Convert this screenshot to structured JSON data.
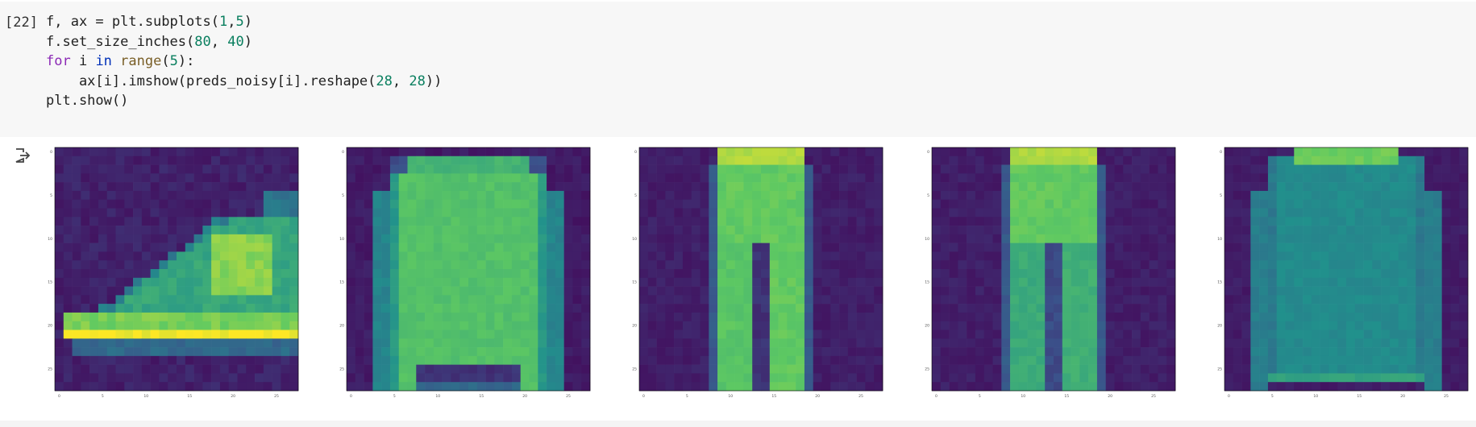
{
  "cell": {
    "execution_count": "[22]",
    "code_lines": [
      [
        {
          "t": "f, ax = plt.subplots("
        },
        {
          "t": "1",
          "c": "num"
        },
        {
          "t": ","
        },
        {
          "t": "5",
          "c": "num"
        },
        {
          "t": ")"
        }
      ],
      [
        {
          "t": "f.set_size_inches("
        },
        {
          "t": "80",
          "c": "num"
        },
        {
          "t": ", "
        },
        {
          "t": "40",
          "c": "num"
        },
        {
          "t": ")"
        }
      ],
      [
        {
          "t": "for",
          "c": "kw"
        },
        {
          "t": " i "
        },
        {
          "t": "in",
          "c": "kw2"
        },
        {
          "t": " "
        },
        {
          "t": "range",
          "c": "bi"
        },
        {
          "t": "("
        },
        {
          "t": "5",
          "c": "num"
        },
        {
          "t": "):"
        }
      ],
      [
        {
          "t": "    ax[i].imshow(preds_noisy[i].reshape("
        },
        {
          "t": "28",
          "c": "num"
        },
        {
          "t": ", "
        },
        {
          "t": "28",
          "c": "num"
        },
        {
          "t": "))"
        }
      ],
      [
        {
          "t": "plt.show()"
        }
      ]
    ]
  },
  "output": {
    "icon": "output-redirect-icon",
    "colormap": {
      "low": "#440154",
      "mid": "#21918c",
      "high": "#fde725"
    },
    "panels": [
      {
        "name": "boot",
        "xticks": [
          "0",
          "5",
          "10",
          "15",
          "20",
          "25"
        ],
        "yticks": [
          "0",
          "5",
          "10",
          "15",
          "20",
          "25"
        ]
      },
      {
        "name": "sweater",
        "xticks": [
          "0",
          "5",
          "10",
          "15",
          "20",
          "25"
        ],
        "yticks": [
          "0",
          "5",
          "10",
          "15",
          "20",
          "25"
        ]
      },
      {
        "name": "trousers-1",
        "xticks": [
          "0",
          "5",
          "10",
          "15",
          "20",
          "25"
        ],
        "yticks": [
          "0",
          "5",
          "10",
          "15",
          "20",
          "25"
        ]
      },
      {
        "name": "trousers-2",
        "xticks": [
          "0",
          "5",
          "10",
          "15",
          "20",
          "25"
        ],
        "yticks": [
          "0",
          "5",
          "10",
          "15",
          "20",
          "25"
        ]
      },
      {
        "name": "shirt",
        "xticks": [
          "0",
          "5",
          "10",
          "15",
          "20",
          "25"
        ],
        "yticks": [
          "0",
          "5",
          "10",
          "15",
          "20",
          "25"
        ]
      }
    ]
  }
}
